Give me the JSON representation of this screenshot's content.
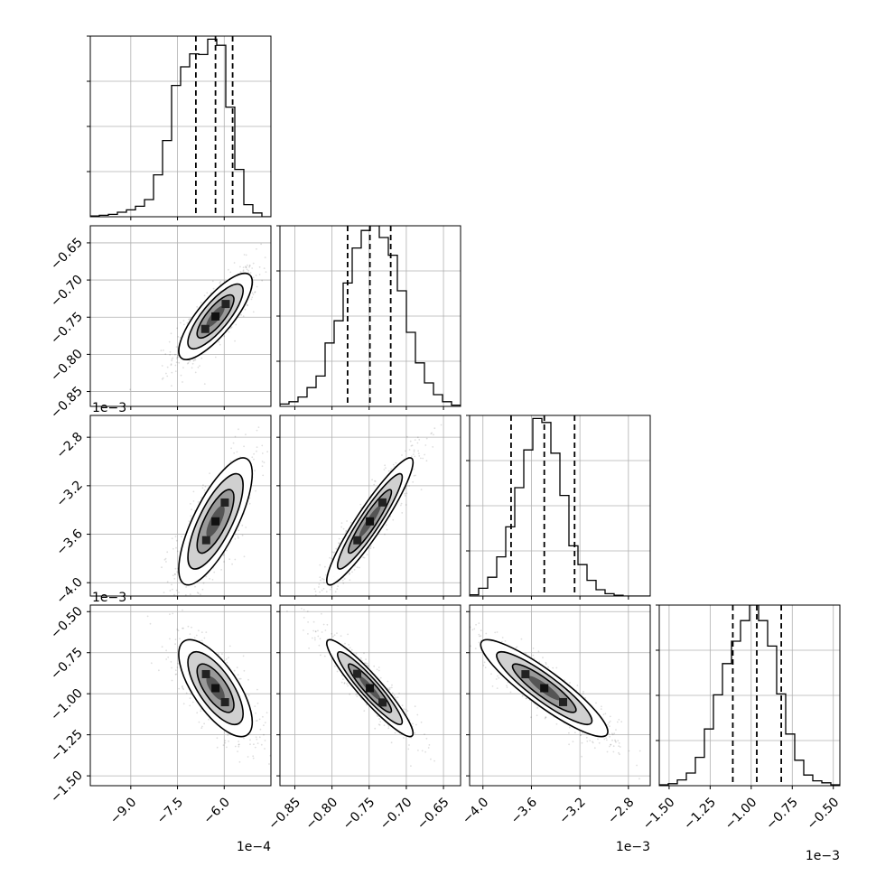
{
  "chart_data": {
    "type": "corner",
    "grid": true,
    "parameters": [
      {
        "name": "",
        "range": [
          -0.00103,
          -0.00045
        ],
        "ticks": [
          -0.0009,
          -0.00075,
          -0.0006
        ],
        "tick_labels": [
          "−9.0",
          "−7.5",
          "−6.0"
        ],
        "offset_label": "1e−4",
        "quantiles": [
          -0.000691,
          -0.000628,
          -0.000573
        ],
        "histogram": [
          0.004,
          0.008,
          0.013,
          0.025,
          0.038,
          0.058,
          0.095,
          0.232,
          0.422,
          0.727,
          0.83,
          0.902,
          0.898,
          0.983,
          0.949,
          0.607,
          0.262,
          0.067,
          0.021,
          0.0
        ]
      },
      {
        "name": "",
        "range": [
          -0.00087,
          -0.000627
        ],
        "ticks": [
          -0.00085,
          -0.0008,
          -0.00075,
          -0.0007,
          -0.00065
        ],
        "tick_labels": [
          "−0.85",
          "−0.80",
          "−0.75",
          "−0.70",
          "−0.65"
        ],
        "offset_label": "1e−3",
        "quantiles": [
          -0.000779,
          -0.000749,
          -0.000721
        ],
        "histogram": [
          0.013,
          0.026,
          0.052,
          0.104,
          0.168,
          0.351,
          0.474,
          0.683,
          0.877,
          0.974,
          1.0,
          0.935,
          0.837,
          0.64,
          0.41,
          0.241,
          0.13,
          0.065,
          0.026,
          0.007
        ]
      },
      {
        "name": "",
        "range": [
          -0.00411,
          -0.00262
        ],
        "ticks": [
          -0.004,
          -0.0036,
          -0.0032,
          -0.0028
        ],
        "tick_labels": [
          "−4.0",
          "−3.6",
          "−3.2",
          "−2.8"
        ],
        "offset_label": "1e−3",
        "quantiles": [
          -0.003768,
          -0.003494,
          -0.003244
        ],
        "histogram": [
          0.007,
          0.043,
          0.104,
          0.217,
          0.383,
          0.6,
          0.809,
          0.983,
          0.961,
          0.791,
          0.557,
          0.278,
          0.174,
          0.087,
          0.035,
          0.013,
          0.004,
          0.0,
          0.0,
          0.0
        ]
      },
      {
        "name": "",
        "range": [
          -0.00156,
          -0.00046
        ],
        "ticks": [
          -0.0015,
          -0.00125,
          -0.001,
          -0.00075,
          -0.0005
        ],
        "tick_labels": [
          "−1.50",
          "−1.25",
          "−1.00",
          "−0.75",
          "−0.50"
        ],
        "offset_label": "1e−3",
        "quantiles": [
          -0.001112,
          -0.000966,
          -0.000817
        ],
        "histogram": [
          0.005,
          0.011,
          0.032,
          0.07,
          0.157,
          0.314,
          0.503,
          0.676,
          0.8,
          0.914,
          1.0,
          0.914,
          0.773,
          0.508,
          0.286,
          0.141,
          0.059,
          0.027,
          0.016,
          0.005
        ]
      }
    ],
    "correlations": [
      [
        1.0,
        0.8,
        0.75,
        -0.7
      ],
      [
        0.8,
        1.0,
        0.93,
        -0.93
      ],
      [
        0.75,
        0.93,
        1.0,
        -0.9
      ],
      [
        -0.7,
        -0.93,
        -0.9,
        1.0
      ]
    ]
  }
}
